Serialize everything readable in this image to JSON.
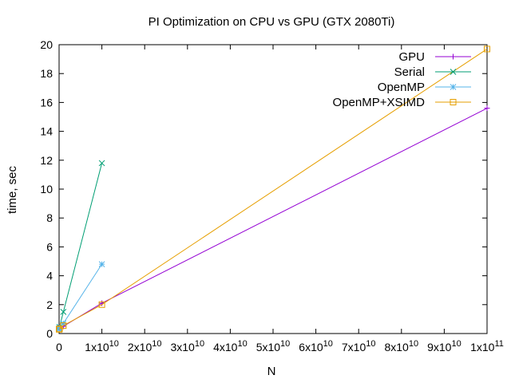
{
  "chart_data": {
    "type": "line",
    "title": "PI Optimization on CPU vs GPU (GTX 2080Ti)",
    "xlabel": "N",
    "ylabel": "time, sec",
    "xlim": [
      0,
      100000000000
    ],
    "ylim": [
      0,
      20
    ],
    "grid": false,
    "legend_position": "top-right",
    "x_ticks": [
      0,
      10000000000,
      20000000000,
      30000000000,
      40000000000,
      50000000000,
      60000000000,
      70000000000,
      80000000000,
      90000000000,
      100000000000
    ],
    "x_tick_labels": [
      {
        "base": "0",
        "exp": ""
      },
      {
        "base": "1x10",
        "exp": "10"
      },
      {
        "base": "2x10",
        "exp": "10"
      },
      {
        "base": "3x10",
        "exp": "10"
      },
      {
        "base": "4x10",
        "exp": "10"
      },
      {
        "base": "5x10",
        "exp": "10"
      },
      {
        "base": "6x10",
        "exp": "10"
      },
      {
        "base": "7x10",
        "exp": "10"
      },
      {
        "base": "8x10",
        "exp": "10"
      },
      {
        "base": "9x10",
        "exp": "10"
      },
      {
        "base": "1x10",
        "exp": "11"
      }
    ],
    "y_ticks": [
      0,
      2,
      4,
      6,
      8,
      10,
      12,
      14,
      16,
      18,
      20
    ],
    "series": [
      {
        "name": "GPU",
        "color": "#9400d3",
        "marker": "plus",
        "x": [
          1000,
          10000,
          100000,
          1000000,
          10000000,
          100000000,
          1000000000,
          10000000000,
          100000000000
        ],
        "y": [
          0.35,
          0.35,
          0.35,
          0.35,
          0.36,
          0.38,
          0.5,
          2.1,
          15.6
        ]
      },
      {
        "name": "Serial",
        "color": "#009e73",
        "marker": "cross",
        "x": [
          1000,
          10000,
          100000,
          1000000,
          10000000,
          100000000,
          1000000000,
          10000000000
        ],
        "y": [
          0.3,
          0.3,
          0.31,
          0.32,
          0.33,
          0.45,
          1.5,
          11.8
        ]
      },
      {
        "name": "OpenMP",
        "color": "#56b4e9",
        "marker": "star",
        "x": [
          1000,
          10000,
          100000,
          1000000,
          10000000,
          100000000,
          1000000000,
          10000000000
        ],
        "y": [
          0.3,
          0.3,
          0.3,
          0.31,
          0.32,
          0.4,
          0.7,
          4.8
        ]
      },
      {
        "name": "OpenMP+XSIMD",
        "color": "#e69f00",
        "marker": "square",
        "x": [
          1000,
          10000,
          100000,
          1000000,
          10000000,
          100000000,
          1000000000,
          10000000000,
          100000000000
        ],
        "y": [
          0.3,
          0.3,
          0.3,
          0.3,
          0.3,
          0.32,
          0.55,
          2.0,
          19.7
        ]
      }
    ]
  }
}
